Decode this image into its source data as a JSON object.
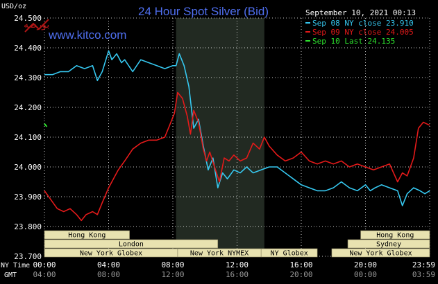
{
  "chart_data": {
    "type": "line",
    "title": "24 Hour Spot Silver (Bid)",
    "watermark_url": "www.kitco.com",
    "logo_text": "بورصه",
    "timestamp": "September 10, 2021 00:13",
    "ylabel": "USD/oz",
    "ylim": [
      23.7,
      24.5
    ],
    "yticks": [
      "24.500",
      "24.400",
      "24.300",
      "24.200",
      "24.100",
      "24.000",
      "23.900",
      "23.800",
      "23.700"
    ],
    "xlim": [
      0,
      24
    ],
    "xticks_ny": [
      "00:00",
      "04:00",
      "08:00",
      "12:00",
      "16:00",
      "20:00",
      "23:59"
    ],
    "xticks_gmt": [
      "04:00",
      "08:00",
      "12:00",
      "16:00",
      "20:00",
      "00:00",
      "03:59"
    ],
    "row_label_ny": "NY Time",
    "row_label_gmt": "GMT",
    "highlight_range": [
      8.2,
      13.7
    ],
    "sessions": [
      {
        "name": "Hong Kong",
        "start": 0,
        "end": 5.3,
        "row": 0
      },
      {
        "name": "London",
        "start": 0,
        "end": 10.8,
        "row": 1
      },
      {
        "name": "New York Globex",
        "start": 0,
        "end": 8.3,
        "row": 2
      },
      {
        "name": "New York NYMEX",
        "start": 8.3,
        "end": 13.5,
        "row": 2
      },
      {
        "name": "NY Globex",
        "start": 13.5,
        "end": 17,
        "row": 2
      },
      {
        "name": "Hong Kong",
        "start": 19.7,
        "end": 24,
        "row": 0
      },
      {
        "name": "Sydney",
        "start": 18.9,
        "end": 24,
        "row": 1
      },
      {
        "name": "New York Globex",
        "start": 17.9,
        "end": 24,
        "row": 2
      }
    ],
    "series": [
      {
        "name": "Sep 08 NY close 23.910",
        "color": "#36c8f0",
        "x": [
          0,
          0.5,
          1,
          1.5,
          2,
          2.5,
          3,
          3.3,
          3.6,
          4,
          4.2,
          4.5,
          4.8,
          5,
          5.5,
          6,
          6.5,
          7,
          7.5,
          8,
          8.2,
          8.4,
          8.7,
          9,
          9.3,
          9.6,
          9.9,
          10.2,
          10.5,
          10.8,
          11.1,
          11.4,
          11.8,
          12.2,
          12.6,
          13,
          13.5,
          14,
          14.5,
          15,
          15.5,
          16,
          16.5,
          17,
          17.5,
          18,
          18.5,
          19,
          19.5,
          20,
          20.3,
          20.6,
          21,
          21.5,
          22,
          22.3,
          22.6,
          23,
          23.4,
          23.7,
          24
        ],
        "y": [
          24.31,
          24.31,
          24.32,
          24.32,
          24.34,
          24.33,
          24.34,
          24.29,
          24.32,
          24.39,
          24.36,
          24.38,
          24.35,
          24.36,
          24.32,
          24.36,
          24.35,
          24.34,
          24.33,
          24.34,
          24.34,
          24.38,
          24.34,
          24.27,
          24.13,
          24.16,
          24.07,
          23.99,
          24.03,
          23.93,
          23.98,
          23.96,
          23.99,
          23.98,
          24.0,
          23.98,
          23.99,
          24.0,
          24.0,
          23.98,
          23.96,
          23.94,
          23.93,
          23.92,
          23.92,
          23.93,
          23.95,
          23.93,
          23.92,
          23.94,
          23.92,
          23.93,
          23.94,
          23.93,
          23.92,
          23.87,
          23.91,
          23.93,
          23.92,
          23.91,
          23.92
        ]
      },
      {
        "name": "Sep 09 NY close 24.005",
        "color": "#e51a1a",
        "x": [
          0,
          0.4,
          0.8,
          1.2,
          1.6,
          2,
          2.3,
          2.6,
          3,
          3.3,
          3.6,
          4,
          4.3,
          4.6,
          5,
          5.5,
          6,
          6.5,
          7,
          7.5,
          7.8,
          8.1,
          8.3,
          8.6,
          8.9,
          9.1,
          9.3,
          9.6,
          9.9,
          10.1,
          10.3,
          10.6,
          10.9,
          11.2,
          11.5,
          11.8,
          12.2,
          12.6,
          13,
          13.4,
          13.7,
          14,
          14.5,
          15,
          15.5,
          16,
          16.5,
          17,
          17.5,
          18,
          18.5,
          19,
          19.5,
          20,
          20.5,
          21,
          21.5,
          22,
          22.3,
          22.6,
          23,
          23.3,
          23.6,
          24
        ],
        "y": [
          23.92,
          23.89,
          23.86,
          23.85,
          23.86,
          23.84,
          23.82,
          23.84,
          23.85,
          23.84,
          23.88,
          23.93,
          23.96,
          23.99,
          24.02,
          24.06,
          24.08,
          24.09,
          24.09,
          24.1,
          24.14,
          24.18,
          24.25,
          24.23,
          24.17,
          24.11,
          24.19,
          24.15,
          24.06,
          24.02,
          24.05,
          24.0,
          23.95,
          24.03,
          24.02,
          24.04,
          24.02,
          24.03,
          24.08,
          24.06,
          24.1,
          24.07,
          24.04,
          24.02,
          24.03,
          24.05,
          24.02,
          24.01,
          24.02,
          24.01,
          24.02,
          24.0,
          24.01,
          24.0,
          23.99,
          24.0,
          24.01,
          23.95,
          23.98,
          23.97,
          24.03,
          24.13,
          24.15,
          24.14
        ]
      },
      {
        "name": "Sep 10 Last 24.135",
        "color": "#2ee42e",
        "x": [
          0,
          0.15
        ],
        "y": [
          24.145,
          24.135
        ]
      }
    ]
  }
}
